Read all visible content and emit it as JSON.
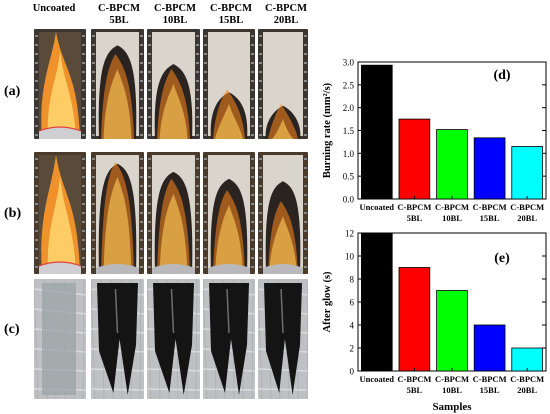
{
  "photo_grid": {
    "columns": [
      "Uncoated",
      "C-BPCM\n5BL",
      "C-BPCM\n10BL",
      "C-BPCM\n15BL",
      "C-BPCM\n20BL"
    ],
    "rows": [
      "(a)",
      "(b)",
      "(c)"
    ]
  },
  "chart_data": [
    {
      "type": "bar",
      "panel_label": "(d)",
      "categories": [
        "Uncoated",
        "C-BPCM\n5BL",
        "C-BPCM\n10BL",
        "C-BPCM\n15BL",
        "C-BPCM\n20BL"
      ],
      "values": [
        2.93,
        1.75,
        1.52,
        1.34,
        1.15
      ],
      "colors": [
        "#000000",
        "#ff0000",
        "#00ff00",
        "#0000ff",
        "#00ffff"
      ],
      "xlabel": "",
      "ylabel": "Burning rate (mm²/s)",
      "ylim": [
        0,
        3.0
      ],
      "yticks": [
        "0.0",
        "0.5",
        "1.0",
        "1.5",
        "2.0",
        "2.5",
        "3.0"
      ],
      "grid": false
    },
    {
      "type": "bar",
      "panel_label": "(e)",
      "categories": [
        "Uncoated",
        "C-BPCM\n5BL",
        "C-BPCM\n10BL",
        "C-BPCM\n15BL",
        "C-BPCM\n20BL"
      ],
      "values": [
        12,
        9,
        7,
        4,
        2
      ],
      "colors": [
        "#000000",
        "#ff0000",
        "#00ff00",
        "#0000ff",
        "#00ffff"
      ],
      "xlabel": "Samples",
      "ylabel": "After glow (s)",
      "ylim": [
        0,
        12
      ],
      "yticks": [
        "0",
        "2",
        "4",
        "6",
        "8",
        "10",
        "12"
      ],
      "grid": false
    }
  ]
}
